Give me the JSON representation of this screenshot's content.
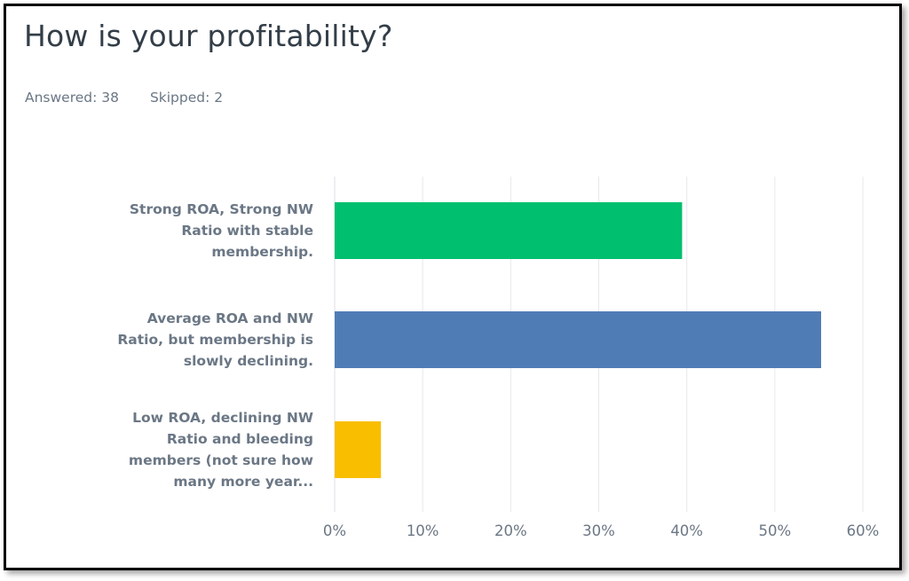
{
  "header": {
    "title": "How is your profitability?",
    "answered_label": "Answered: 38",
    "skipped_label": "Skipped: 2"
  },
  "chart_data": {
    "type": "bar",
    "orientation": "horizontal",
    "title": "How is your profitability?",
    "xlabel": "",
    "ylabel": "",
    "categories": [
      "Strong ROA, Strong NW Ratio with stable membership.",
      "Average ROA and NW Ratio, but membership is slowly declining.",
      "Low ROA, declining NW Ratio and bleeding members (not sure how many more year..."
    ],
    "category_lines": [
      [
        "Strong ROA, Strong NW",
        "Ratio with stable",
        "membership."
      ],
      [
        "Average ROA and NW",
        "Ratio, but membership is",
        "slowly declining."
      ],
      [
        "Low ROA, declining NW",
        "Ratio and bleeding",
        "members (not sure how",
        "many more year..."
      ]
    ],
    "values": [
      39.47,
      55.26,
      5.26
    ],
    "colors": [
      "#00bf6f",
      "#507cb6",
      "#f9be00"
    ],
    "xlim": [
      0,
      60
    ],
    "ticks": [
      0,
      10,
      20,
      30,
      40,
      50,
      60
    ],
    "tick_labels": [
      "0%",
      "10%",
      "20%",
      "30%",
      "40%",
      "50%",
      "60%"
    ],
    "grid": true
  }
}
